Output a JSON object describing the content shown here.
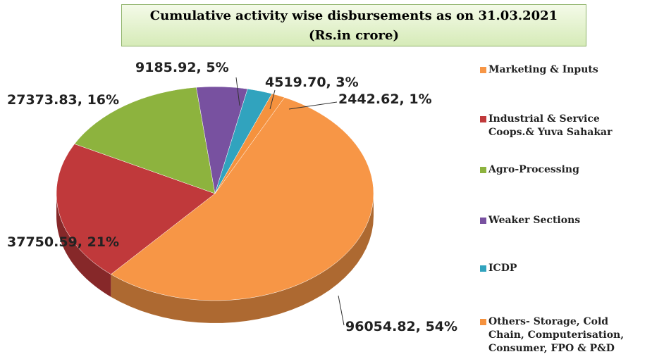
{
  "chart_data": {
    "type": "pie",
    "title": "Cumulative activity wise disbursements as on 31.03.2021",
    "subtitle": "(Rs.in crore)",
    "categories": [
      "Marketing & Inputs",
      "Industrial & Service Coops.& Yuva Sahakar",
      "Agro-Processing",
      "Weaker Sections",
      "ICDP",
      "Others- Storage, Cold Chain, Computerisation, Consumer, FPO & P&D"
    ],
    "values": [
      96054.82,
      37750.59,
      27373.83,
      9185.92,
      4519.7,
      2442.62
    ],
    "value_labels": [
      "96054.82, 54%",
      "37750.59, 21%",
      "27373.83, 16%",
      "9185.92, 5%",
      "4519.70, 3%",
      "2442.62, 1%"
    ],
    "colors": [
      "#f79646",
      "#c0393b",
      "#8db33e",
      "#7851a0",
      "#31a3be",
      "#f5923e"
    ],
    "legend": "right"
  }
}
